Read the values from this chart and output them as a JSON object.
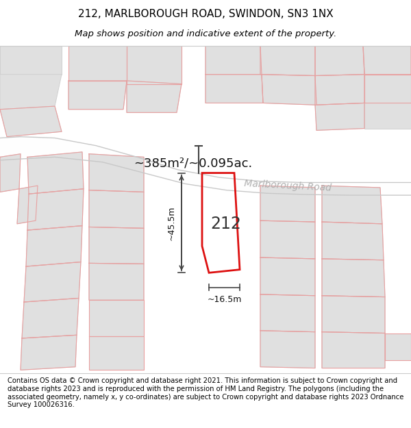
{
  "title": "212, MARLBOROUGH ROAD, SWINDON, SN3 1NX",
  "subtitle": "Map shows position and indicative extent of the property.",
  "footer": "Contains OS data © Crown copyright and database right 2021. This information is subject to Crown copyright and database rights 2023 and is reproduced with the permission of HM Land Registry. The polygons (including the associated geometry, namely x, y co-ordinates) are subject to Crown copyright and database rights 2023 Ordnance Survey 100026316.",
  "bg_color": "#f7f7f5",
  "map_bg": "#ffffff",
  "plot_outline_color": "#dd1111",
  "parcel_gray_fill": "#e0e0e0",
  "parcel_gray_edge": "#d0d0d0",
  "parcel_line_color": "#e8a0a0",
  "road_gray_color": "#c8c8c8",
  "label_212": "212",
  "area_label": "~385m²/~0.095ac.",
  "dim_width": "~16.5m",
  "dim_height": "~45.5m",
  "title_fontsize": 11,
  "subtitle_fontsize": 9.5,
  "footer_fontsize": 7.2,
  "road_label": "Marlborough Road"
}
